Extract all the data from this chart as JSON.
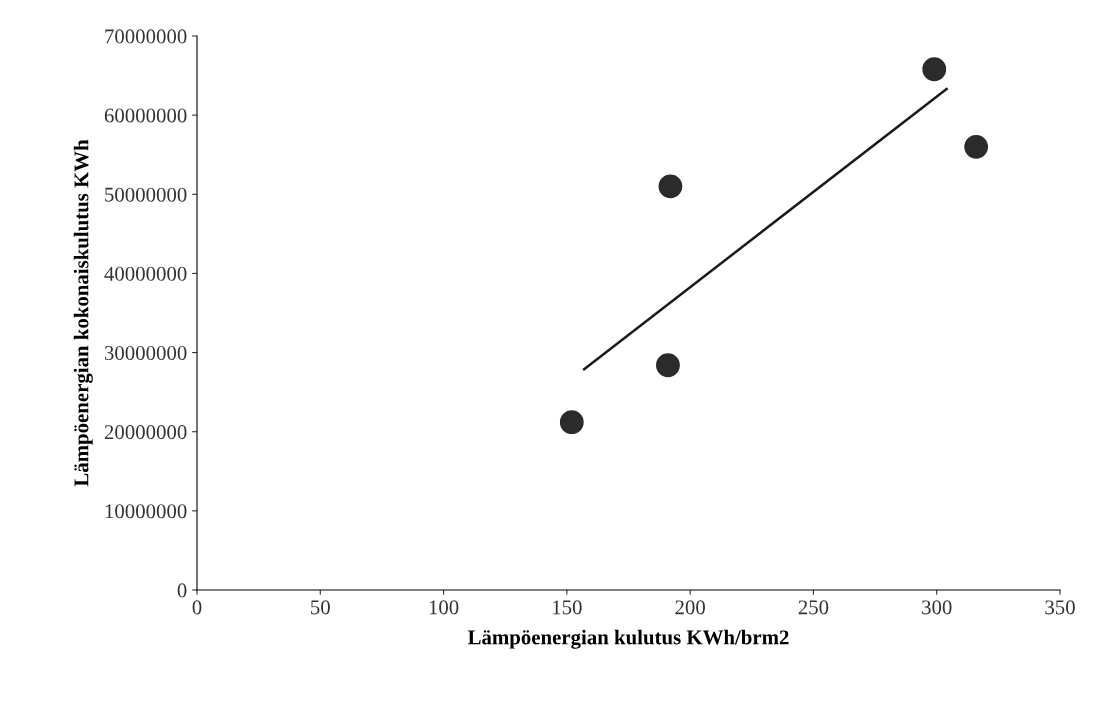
{
  "chart_data": {
    "type": "scatter",
    "xlabel": "Lämpöenergian kulutus KWh/brm2",
    "ylabel": "Lämpöenergian kokonaiskulutus KWh",
    "series": [
      {
        "color": "#2b2b2b",
        "marker": "circle",
        "x": [
          152,
          191,
          192,
          299,
          316
        ],
        "values": [
          21200000,
          28400000,
          51000000,
          65800000,
          56000000
        ]
      },
      {
        "type": "line",
        "color": "#1a1a1a",
        "x": [
          157,
          304
        ],
        "values": [
          27900000,
          63300000
        ]
      }
    ],
    "xlim": [
      0,
      350
    ],
    "xticks": [
      0,
      50,
      100,
      150,
      200,
      250,
      300,
      350
    ],
    "ylim": [
      0,
      70000000
    ],
    "yticks": [
      0,
      10000000,
      20000000,
      30000000,
      40000000,
      50000000,
      60000000,
      70000000
    ],
    "grid": false,
    "legend": false
  }
}
